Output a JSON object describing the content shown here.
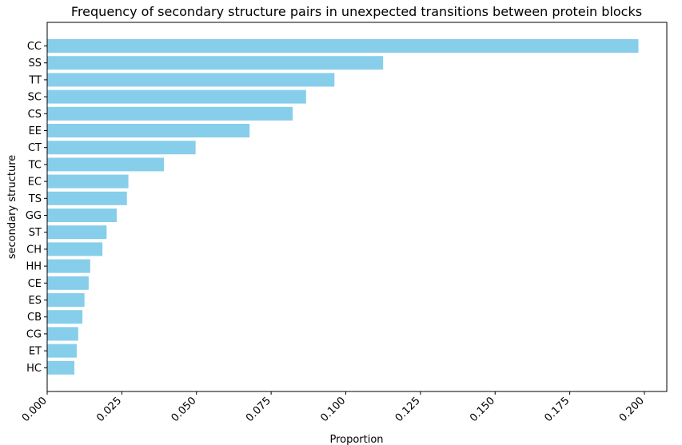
{
  "chart_data": {
    "type": "bar",
    "orientation": "horizontal",
    "title": "Frequency of secondary structure pairs in unexpected transitions between protein blocks",
    "xlabel": "Proportion",
    "ylabel": "secondary structure",
    "xlim": [
      0,
      0.2075
    ],
    "xticks": [
      0.0,
      0.025,
      0.05,
      0.075,
      0.1,
      0.125,
      0.15,
      0.175,
      0.2
    ],
    "xtick_labels": [
      "0.000",
      "0.025",
      "0.050",
      "0.075",
      "0.100",
      "0.125",
      "0.150",
      "0.175",
      "0.200"
    ],
    "bar_color": "#87ceeb",
    "categories": [
      "CC",
      "SS",
      "TT",
      "SC",
      "CS",
      "EE",
      "CT",
      "TC",
      "EC",
      "TS",
      "GG",
      "ST",
      "CH",
      "HH",
      "CE",
      "ES",
      "CB",
      "CG",
      "ET",
      "HC"
    ],
    "values": [
      0.198,
      0.1125,
      0.0962,
      0.0867,
      0.0822,
      0.0678,
      0.0497,
      0.0391,
      0.0272,
      0.0267,
      0.0233,
      0.0199,
      0.0185,
      0.0144,
      0.0139,
      0.0125,
      0.0118,
      0.0104,
      0.0099,
      0.0091
    ]
  }
}
